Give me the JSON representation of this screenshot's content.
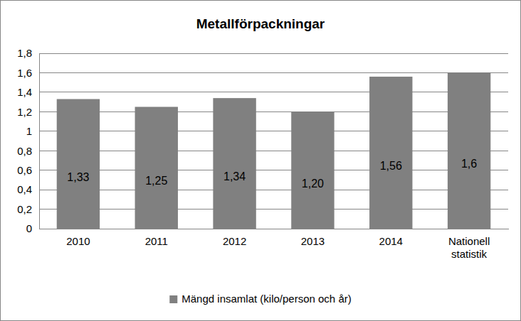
{
  "chart_data": {
    "type": "bar",
    "title": "Metallförpackningar",
    "categories": [
      "2010",
      "2011",
      "2012",
      "2013",
      "2014",
      "Nationell statistik"
    ],
    "series": [
      {
        "name": "Mängd insamlat (kilo/person och år)",
        "color": "#808080",
        "values": [
          1.33,
          1.25,
          1.34,
          1.2,
          1.56,
          1.6
        ],
        "value_labels": [
          "1,33",
          "1,25",
          "1,34",
          "1,20",
          "1,56",
          "1,6"
        ]
      }
    ],
    "ylim": [
      0,
      1.8
    ],
    "yticks": [
      0,
      {
        "value": 0.2,
        "label": "0,2"
      },
      {
        "value": 0.4,
        "label": "0,4"
      },
      {
        "value": 0.6,
        "label": "0,6"
      },
      {
        "value": 0.8,
        "label": "0,8"
      },
      1,
      {
        "value": 1.2,
        "label": "1,2"
      },
      {
        "value": 1.4,
        "label": "1,4"
      },
      {
        "value": 1.6,
        "label": "1,6"
      },
      {
        "value": 1.8,
        "label": "1,8"
      }
    ],
    "grid": true,
    "data_labels": true,
    "legend": "bottom"
  }
}
